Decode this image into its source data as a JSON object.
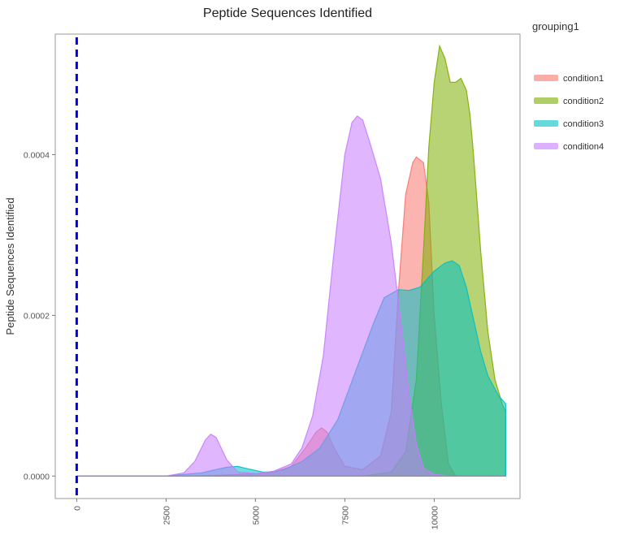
{
  "chart_data": {
    "type": "area",
    "title": "Peptide Sequences Identified",
    "xlabel": "",
    "ylabel": "Peptide Sequences Identified",
    "xlim": [
      -600,
      12400
    ],
    "ylim": [
      -2.8e-05,
      0.00055
    ],
    "x_ticks": [
      0,
      2500,
      5000,
      7500,
      10000
    ],
    "x_tick_labels": [
      "0",
      "2500",
      "5000",
      "7500",
      "10000"
    ],
    "y_ticks": [
      0,
      0.0002,
      0.0004
    ],
    "y_tick_labels": [
      "0.0000",
      "0.0002",
      "0.0004"
    ],
    "grid": false,
    "reference_line": {
      "x": 0,
      "color": "#0000ee",
      "style": "dashed"
    },
    "legend": {
      "title": "grouping1",
      "position": "right"
    },
    "series": [
      {
        "name": "condition1",
        "color": "#f8766d",
        "points": [
          [
            0,
            0
          ],
          [
            3000,
            0
          ],
          [
            4000,
            1e-06
          ],
          [
            5000,
            3e-06
          ],
          [
            5500,
            5e-06
          ],
          [
            6000,
            1.2e-05
          ],
          [
            6400,
            3.5e-05
          ],
          [
            6700,
            5.5e-05
          ],
          [
            6850,
            6e-05
          ],
          [
            7000,
            5.5e-05
          ],
          [
            7200,
            3.5e-05
          ],
          [
            7500,
            1.2e-05
          ],
          [
            8000,
            8e-06
          ],
          [
            8500,
            2.5e-05
          ],
          [
            8800,
            8e-05
          ],
          [
            9000,
            0.00023
          ],
          [
            9200,
            0.00035
          ],
          [
            9400,
            0.00039
          ],
          [
            9500,
            0.000397
          ],
          [
            9700,
            0.00039
          ],
          [
            9850,
            0.00034
          ],
          [
            10000,
            0.0002
          ],
          [
            10200,
            9e-05
          ],
          [
            10400,
            1.5e-05
          ],
          [
            10600,
            0
          ],
          [
            12000,
            0
          ]
        ]
      },
      {
        "name": "condition2",
        "color": "#7cae00",
        "points": [
          [
            0,
            0
          ],
          [
            8000,
            0
          ],
          [
            8800,
            5e-06
          ],
          [
            9200,
            3e-05
          ],
          [
            9500,
            0.00012
          ],
          [
            9700,
            0.00028
          ],
          [
            9850,
            0.00041
          ],
          [
            10000,
            0.00049
          ],
          [
            10150,
            0.000535
          ],
          [
            10300,
            0.00052
          ],
          [
            10450,
            0.00049
          ],
          [
            10600,
            0.00049
          ],
          [
            10750,
            0.000495
          ],
          [
            10900,
            0.00048
          ],
          [
            11000,
            0.00045
          ],
          [
            11100,
            0.0004
          ],
          [
            11300,
            0.00028
          ],
          [
            11500,
            0.00018
          ],
          [
            11700,
            0.00012
          ],
          [
            11900,
            9e-05
          ],
          [
            12000,
            8e-05
          ],
          [
            12000,
            0
          ]
        ]
      },
      {
        "name": "condition3",
        "color": "#00bfc4",
        "points": [
          [
            0,
            0
          ],
          [
            2500,
            0
          ],
          [
            3500,
            4e-06
          ],
          [
            4200,
            1.1e-05
          ],
          [
            4500,
            1.2e-05
          ],
          [
            4800,
            9e-06
          ],
          [
            5200,
            5e-06
          ],
          [
            5500,
            5e-06
          ],
          [
            5800,
            8e-06
          ],
          [
            6300,
            1.8e-05
          ],
          [
            6800,
            3.5e-05
          ],
          [
            7300,
            7e-05
          ],
          [
            7800,
            0.00013
          ],
          [
            8300,
            0.00019
          ],
          [
            8600,
            0.000222
          ],
          [
            9000,
            0.000232
          ],
          [
            9300,
            0.000231
          ],
          [
            9600,
            0.000235
          ],
          [
            10000,
            0.000255
          ],
          [
            10300,
            0.000265
          ],
          [
            10500,
            0.000268
          ],
          [
            10700,
            0.000262
          ],
          [
            10900,
            0.000235
          ],
          [
            11100,
            0.000195
          ],
          [
            11300,
            0.000155
          ],
          [
            11500,
            0.000125
          ],
          [
            11800,
            0.0001
          ],
          [
            12000,
            9e-05
          ],
          [
            12000,
            0
          ]
        ]
      },
      {
        "name": "condition4",
        "color": "#c77cff",
        "points": [
          [
            0,
            0
          ],
          [
            2500,
            0
          ],
          [
            3000,
            4e-06
          ],
          [
            3300,
            1.8e-05
          ],
          [
            3600,
            4.5e-05
          ],
          [
            3750,
            5.2e-05
          ],
          [
            3900,
            4.8e-05
          ],
          [
            4200,
            2e-05
          ],
          [
            4500,
            5e-06
          ],
          [
            5000,
            3e-06
          ],
          [
            5500,
            6e-06
          ],
          [
            6000,
            1.5e-05
          ],
          [
            6300,
            3.5e-05
          ],
          [
            6600,
            7.5e-05
          ],
          [
            6900,
            0.00015
          ],
          [
            7200,
            0.00028
          ],
          [
            7500,
            0.0004
          ],
          [
            7700,
            0.00044
          ],
          [
            7850,
            0.000448
          ],
          [
            8000,
            0.000443
          ],
          [
            8200,
            0.000415
          ],
          [
            8500,
            0.00037
          ],
          [
            8800,
            0.00029
          ],
          [
            9100,
            0.00018
          ],
          [
            9300,
            0.0001
          ],
          [
            9500,
            4e-05
          ],
          [
            9700,
            1e-05
          ],
          [
            10000,
            2e-06
          ],
          [
            10500,
            0
          ],
          [
            12000,
            0
          ]
        ]
      }
    ]
  }
}
